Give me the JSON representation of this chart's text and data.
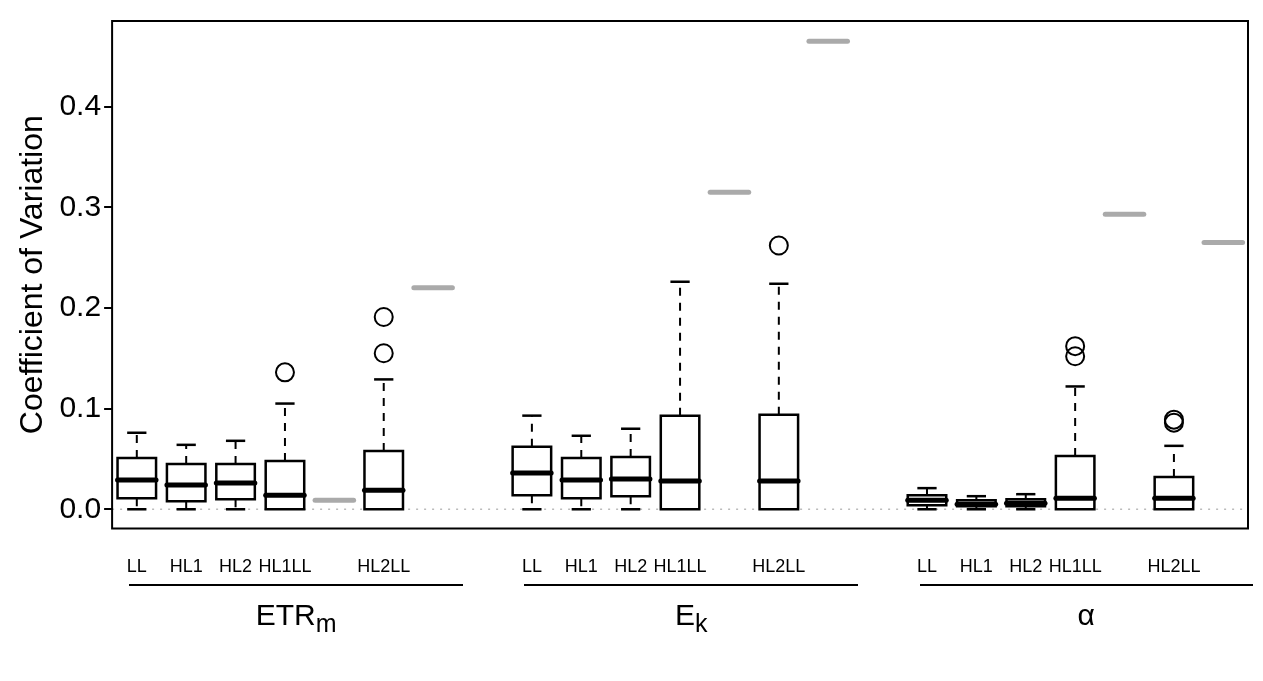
{
  "chart_data": {
    "type": "box",
    "ylabel": "Coefficient of Variation",
    "categories": [
      "LL",
      "HL1",
      "HL2",
      "HL1LL",
      null,
      "HL2LL",
      null,
      null,
      "LL",
      "HL1",
      "HL2",
      "HL1LL",
      null,
      "HL2LL",
      null,
      null,
      "LL",
      "HL1",
      "HL2",
      "HL1LL",
      null,
      "HL2LL",
      null
    ],
    "series": [
      {
        "color": "#000000",
        "boxes": [
          {
            "low": 0,
            "q1": 0.011,
            "median": 0.029,
            "q3": 0.051,
            "high": 0.076
          },
          {
            "low": 0,
            "q1": 0.008,
            "median": 0.024,
            "q3": 0.045,
            "high": 0.064
          },
          {
            "low": 0,
            "q1": 0.01,
            "median": 0.026,
            "q3": 0.045,
            "high": 0.068
          },
          {
            "low": 0,
            "q1": 0,
            "median": 0.014,
            "q3": 0.048,
            "high": 0.105,
            "outliers": [
              0.136
            ]
          },
          null,
          {
            "low": 0,
            "q1": 0,
            "median": 0.019,
            "q3": 0.058,
            "high": 0.129,
            "outliers": [
              0.155,
              0.191
            ]
          },
          null,
          null,
          {
            "low": 0,
            "q1": 0.014,
            "median": 0.036,
            "q3": 0.062,
            "high": 0.093
          },
          {
            "low": 0,
            "q1": 0.011,
            "median": 0.029,
            "q3": 0.051,
            "high": 0.073
          },
          {
            "low": 0,
            "q1": 0.013,
            "median": 0.03,
            "q3": 0.052,
            "high": 0.08
          },
          {
            "low": 0,
            "q1": 0,
            "median": 0.028,
            "q3": 0.093,
            "high": 0.226
          },
          null,
          {
            "low": 0,
            "q1": 0,
            "median": 0.028,
            "q3": 0.094,
            "high": 0.224,
            "outliers": [
              0.262
            ]
          },
          null,
          null,
          {
            "low": 0,
            "q1": 0.004,
            "median": 0.009,
            "q3": 0.014,
            "high": 0.021
          },
          {
            "low": 0,
            "q1": 0.003,
            "median": 0.005,
            "q3": 0.009,
            "high": 0.013
          },
          {
            "low": 0,
            "q1": 0.003,
            "median": 0.006,
            "q3": 0.01,
            "high": 0.015
          },
          {
            "low": 0,
            "q1": 0,
            "median": 0.011,
            "q3": 0.053,
            "high": 0.122,
            "outliers": [
              0.152,
              0.162
            ]
          },
          null,
          {
            "low": 0,
            "q1": 0,
            "median": 0.011,
            "q3": 0.032,
            "high": 0.063,
            "outliers": [
              0.086,
              0.089
            ]
          },
          null
        ]
      },
      {
        "color": "#aaaaaa",
        "boxes": [
          null,
          null,
          null,
          null,
          {
            "low": 0.009,
            "q1": 0.009,
            "median": 0.009,
            "q3": 0.009,
            "high": 0.009
          },
          null,
          {
            "low": 0.22,
            "q1": 0.22,
            "median": 0.22,
            "q3": 0.22,
            "high": 0.22
          },
          null,
          null,
          null,
          null,
          null,
          {
            "low": 0.315,
            "q1": 0.315,
            "median": 0.315,
            "q3": 0.315,
            "high": 0.315
          },
          null,
          {
            "low": 0.465,
            "q1": 0.465,
            "median": 0.465,
            "q3": 0.465,
            "high": 0.465
          },
          null,
          null,
          null,
          null,
          null,
          {
            "low": 0.293,
            "q1": 0.293,
            "median": 0.293,
            "q3": 0.293,
            "high": 0.293
          },
          null,
          {
            "low": 0.265,
            "q1": 0.265,
            "median": 0.265,
            "q3": 0.265,
            "high": 0.265
          }
        ]
      }
    ],
    "ylim": [
      -0.019,
      0.485
    ],
    "yticks": [
      {
        "value": 0,
        "label": "0.0"
      },
      {
        "value": 0.1,
        "label": "0.1"
      },
      {
        "value": 0.2,
        "label": "0.2"
      },
      {
        "value": 0.3,
        "label": "0.3"
      },
      {
        "value": 0.4,
        "label": "0.4"
      }
    ],
    "ref_lines": [
      {
        "axis": "y",
        "value": 0,
        "color": "#bbbbbb",
        "line_style": "dotted"
      }
    ],
    "annotations": [
      "ETR$_{m}$",
      "E$_{k}$",
      "α"
    ],
    "grid": false
  }
}
